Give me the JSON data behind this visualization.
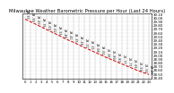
{
  "title": "Milwaukee Weather Barometric Pressure per Hour (Last 24 Hours)",
  "hours": [
    0,
    1,
    2,
    3,
    4,
    5,
    6,
    7,
    8,
    9,
    10,
    11,
    12,
    13,
    14,
    15,
    16,
    17,
    18,
    19,
    20,
    21,
    22,
    23
  ],
  "pressure": [
    29.97,
    29.9,
    29.83,
    29.76,
    29.69,
    29.62,
    29.55,
    29.48,
    29.41,
    29.35,
    29.28,
    29.21,
    29.15,
    29.08,
    29.02,
    28.95,
    28.89,
    28.83,
    28.77,
    28.71,
    28.65,
    28.59,
    28.54,
    28.49
  ],
  "ylim": [
    28.4,
    30.1
  ],
  "yticks": [
    28.4,
    28.5,
    28.6,
    28.7,
    28.8,
    28.9,
    29.0,
    29.1,
    29.2,
    29.3,
    29.4,
    29.5,
    29.6,
    29.7,
    29.8,
    29.9,
    30.0,
    30.1
  ],
  "ytick_labels": [
    "28.40",
    "28.50",
    "28.60",
    "28.70",
    "28.80",
    "28.90",
    "29.00",
    "29.10",
    "29.20",
    "29.30",
    "29.40",
    "29.50",
    "29.60",
    "29.70",
    "29.80",
    "29.90",
    "30.00",
    "30.10"
  ],
  "xtick_labels": [
    "0",
    "1",
    "2",
    "3",
    "4",
    "5",
    "6",
    "7",
    "8",
    "9",
    "10",
    "11",
    "12",
    "13",
    "14",
    "15",
    "16",
    "17",
    "18",
    "19",
    "20",
    "21",
    "22",
    "23"
  ],
  "line_color": "#cc0000",
  "marker_color": "#000000",
  "bg_color": "#ffffff",
  "grid_color": "#999999",
  "title_fontsize": 3.8,
  "tick_fontsize": 2.8,
  "label_fontsize": 2.5
}
